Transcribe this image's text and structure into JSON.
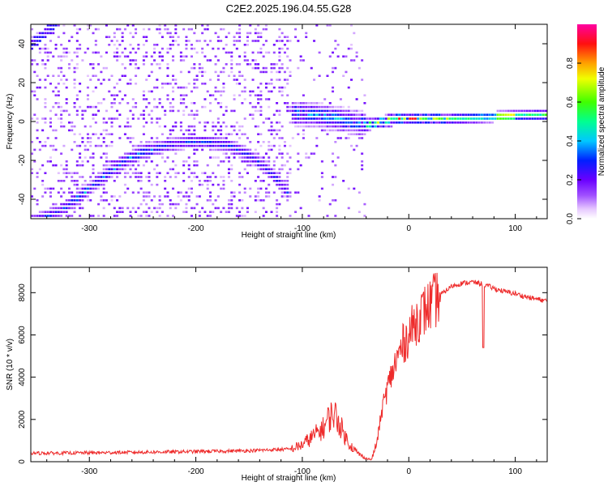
{
  "figure_title": "C2E2.2025.196.04.55.G28",
  "colors": {
    "snr_line": "#ee2b2b",
    "axis": "#000000",
    "background": "#ffffff"
  },
  "chart_data": [
    {
      "type": "heatmap",
      "title": "C2E2.2025.196.04.55.G28",
      "xlabel": "Height of straight line (km)",
      "ylabel": "Frequency (Hz)",
      "xlim": [
        -355,
        130
      ],
      "ylim": [
        -50,
        50
      ],
      "x_ticks": [
        -300,
        -200,
        -100,
        0,
        100
      ],
      "y_ticks": [
        -40,
        -20,
        0,
        20,
        40
      ],
      "grid": false,
      "colorbar": {
        "label": "Normalized spectral amplitude",
        "range": [
          0,
          1
        ],
        "ticks": [
          0.0,
          0.2,
          0.4,
          0.6,
          0.8
        ],
        "colormap": "rainbow (white-violet-purple-blue-cyan-green-yellow-red-magenta)"
      },
      "ridges": [
        {
          "x": [
            -350,
            -330,
            -310,
            -290,
            -270,
            -250,
            -230,
            -210,
            -190,
            -170,
            -150,
            -130,
            -115
          ],
          "y": [
            -52,
            -48,
            -40,
            -31,
            -22,
            -17,
            -14,
            -12,
            -12,
            -14,
            -19,
            -28,
            -38
          ]
        },
        {
          "x": [
            -110,
            -90,
            -70,
            -50,
            -40,
            -30,
            -20,
            -10,
            0,
            20,
            40,
            60,
            80,
            100,
            130
          ],
          "y": [
            3,
            2,
            0,
            -2,
            -3,
            -2,
            -1,
            0,
            0,
            0,
            0,
            0.5,
            1,
            1.5,
            2
          ]
        }
      ]
    },
    {
      "type": "line",
      "xlabel": "Height of straight line (km)",
      "ylabel": "SNR (10 * v/v)",
      "xlim": [
        -355,
        130
      ],
      "ylim": [
        0,
        9200
      ],
      "x_ticks": [
        -300,
        -200,
        -100,
        0,
        100
      ],
      "y_ticks": [
        0,
        2000,
        4000,
        6000,
        8000
      ],
      "grid": false,
      "series": [
        {
          "x": [
            -355,
            -300,
            -250,
            -200,
            -150,
            -110,
            -100,
            -90,
            -80,
            -75,
            -70,
            -65,
            -60,
            -55,
            -50,
            -45,
            -40,
            -35,
            -30,
            -25,
            -20,
            -15,
            -10,
            -5,
            0,
            5,
            10,
            20,
            30,
            40,
            50,
            60,
            70,
            80,
            90,
            100,
            110,
            120,
            130
          ],
          "y": [
            400,
            420,
            450,
            480,
            520,
            600,
            800,
            1200,
            1600,
            2100,
            2300,
            1800,
            1200,
            800,
            500,
            300,
            150,
            100,
            900,
            2500,
            3500,
            4300,
            5000,
            5600,
            6000,
            6500,
            6900,
            7400,
            7900,
            8300,
            8450,
            8500,
            8400,
            8200,
            8050,
            7950,
            7800,
            7700,
            7600
          ]
        }
      ]
    }
  ]
}
